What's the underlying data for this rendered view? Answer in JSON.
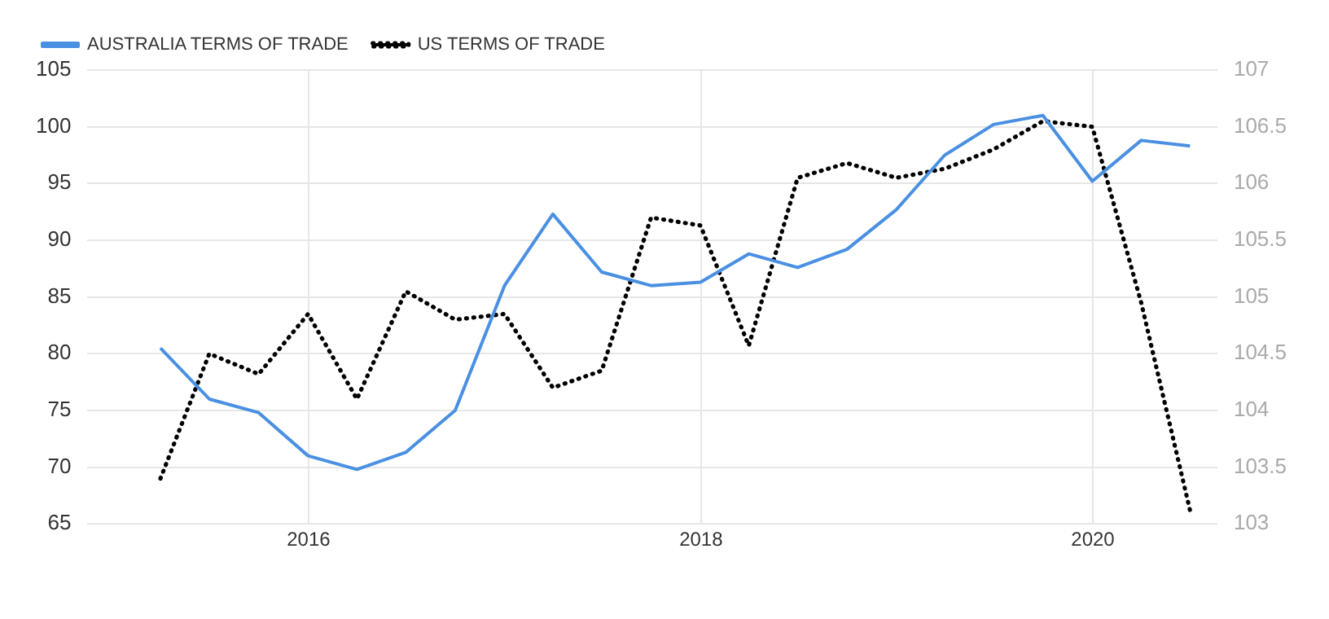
{
  "chart_data": {
    "type": "line",
    "x": [
      "2015-03-31",
      "2015-06-30",
      "2015-09-30",
      "2015-12-31",
      "2016-03-31",
      "2016-06-30",
      "2016-09-30",
      "2016-12-31",
      "2017-03-31",
      "2017-06-30",
      "2017-09-30",
      "2017-12-31",
      "2018-03-31",
      "2018-06-30",
      "2018-09-30",
      "2018-12-31",
      "2019-03-31",
      "2019-06-30",
      "2019-09-30",
      "2019-12-31",
      "2020-03-31",
      "2020-06-30"
    ],
    "series": [
      {
        "name": "AUSTRALIA TERMS OF TRADE",
        "color": "#4a90e2",
        "line_style": "solid",
        "values": [
          80.5,
          76,
          74.8,
          71,
          69.8,
          71.3,
          75,
          86,
          92.3,
          87.2,
          86,
          86.3,
          88.8,
          87.6,
          89.2,
          92.7,
          97.5,
          100.2,
          101,
          95.2,
          98.8,
          98.3
        ]
      },
      {
        "name": "US TERMS OF TRADE",
        "color": "#000000",
        "line_style": "dotted",
        "axis": "y2",
        "values": [
          103.4,
          104.5,
          104.32,
          104.85,
          104.1,
          105.05,
          104.8,
          104.85,
          104.2,
          104.35,
          105.7,
          105.63,
          104.57,
          106.05,
          106.18,
          106.05,
          106.13,
          106.3,
          106.55,
          106.5,
          104.95,
          103.12
        ]
      }
    ],
    "xlim": [
      "2014-11-15",
      "2020-08-20"
    ],
    "xticks": [
      "2016",
      "2018",
      "2020"
    ],
    "ylim": [
      65,
      105
    ],
    "yticks": [
      65,
      70,
      75,
      80,
      85,
      90,
      95,
      100,
      105
    ],
    "y2lim": [
      103,
      107
    ],
    "y2ticks": [
      103,
      103.5,
      104,
      104.5,
      105,
      105.5,
      106,
      106.5,
      107
    ],
    "grid": true,
    "legend": "top left",
    "marker": "none"
  }
}
